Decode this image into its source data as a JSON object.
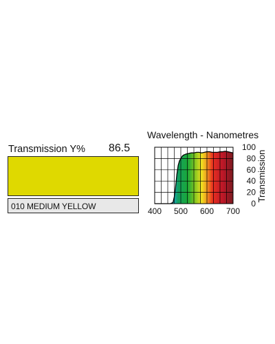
{
  "filter": {
    "transmission_label": "Transmission Y%",
    "transmission_value": "86.5",
    "code_name": "010 MEDIUM YELLOW",
    "swatch_color": "#dfd900",
    "name_bar_color": "#e8e8e8"
  },
  "chart_data": {
    "type": "area",
    "title": "Wavelength - Nanometres",
    "xlabel": "",
    "ylabel": "Transmission",
    "xlim": [
      400,
      700
    ],
    "ylim": [
      0,
      100
    ],
    "x_ticks": [
      400,
      500,
      600,
      700
    ],
    "y_ticks": [
      0,
      20,
      40,
      60,
      80,
      100
    ],
    "grid": true,
    "series": [
      {
        "x": [
          400,
          430,
          460,
          470,
          475,
          480,
          485,
          490,
          495,
          500,
          505,
          510,
          515,
          520,
          530,
          540,
          550,
          560,
          570,
          580,
          590,
          600,
          610,
          620,
          630,
          640,
          650,
          660,
          670,
          680,
          690,
          700
        ],
        "y": [
          0,
          0,
          0,
          2,
          12,
          30,
          52,
          68,
          76,
          80,
          84,
          86,
          87,
          88,
          89,
          90,
          90,
          91,
          91,
          90,
          91,
          92,
          92,
          91,
          91,
          91,
          92,
          92,
          93,
          92,
          91,
          90
        ]
      }
    ]
  }
}
